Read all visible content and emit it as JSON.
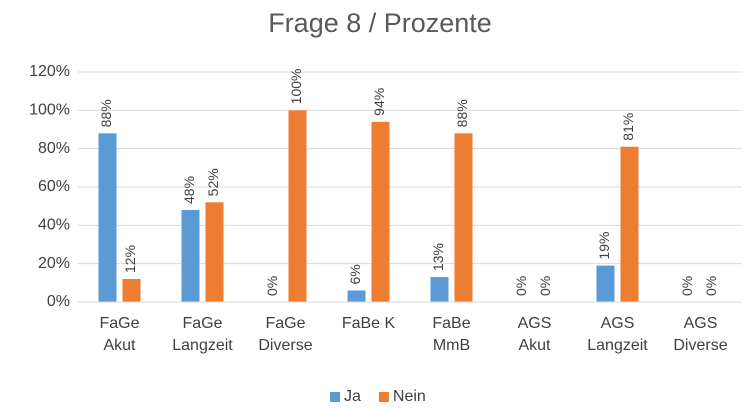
{
  "chart_data": {
    "type": "bar",
    "title": "Frage 8 / Prozente",
    "categories": [
      "FaGe\nAkut",
      "FaGe\nLangzeit",
      "FaGe\nDiverse",
      "FaBe K",
      "FaBe\nMmB",
      "AGS\nAkut",
      "AGS\nLangzeit",
      "AGS\nDiverse"
    ],
    "series": [
      {
        "name": "Ja",
        "color": "#5b9bd5",
        "values": [
          88,
          48,
          0,
          6,
          13,
          0,
          19,
          0
        ],
        "value_labels": [
          "88%",
          "48%",
          "0%",
          "6%",
          "13%",
          "0%",
          "19%",
          "0%"
        ]
      },
      {
        "name": "Nein",
        "color": "#ed7d31",
        "values": [
          12,
          52,
          100,
          94,
          88,
          0,
          81,
          0
        ],
        "value_labels": [
          "12%",
          "52%",
          "100%",
          "94%",
          "88%",
          "0%",
          "81%",
          "0%"
        ]
      }
    ],
    "ylim": [
      0,
      120
    ],
    "yticks": [
      {
        "value": 0,
        "label": "0%"
      },
      {
        "value": 20,
        "label": "20%"
      },
      {
        "value": 40,
        "label": "40%"
      },
      {
        "value": 60,
        "label": "60%"
      },
      {
        "value": 80,
        "label": "80%"
      },
      {
        "value": 100,
        "label": "100%"
      },
      {
        "value": 120,
        "label": "120%"
      }
    ],
    "grid": true,
    "legend": "bottom"
  }
}
